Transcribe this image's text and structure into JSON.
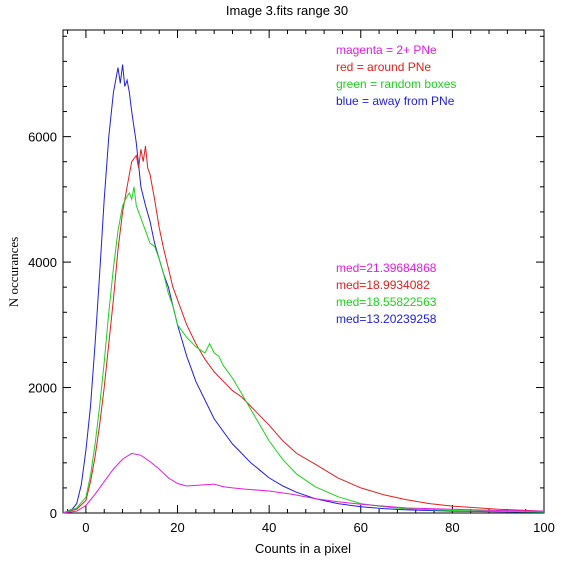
{
  "chart_data": {
    "type": "line",
    "title": "Image 3.fits   range 30",
    "xlabel": "Counts in a pixel",
    "ylabel": "N occurances",
    "xlim": [
      -5,
      100
    ],
    "ylim": [
      0,
      7700
    ],
    "xticks": [
      0,
      20,
      40,
      60,
      80,
      100
    ],
    "yticks": [
      0,
      2000,
      4000,
      6000
    ],
    "grid": false,
    "legend": [
      {
        "text": "magenta = 2+ PNe",
        "color": "#e020e0"
      },
      {
        "text": "red = around PNe",
        "color": "#e02020"
      },
      {
        "text": "green = random boxes",
        "color": "#20d020"
      },
      {
        "text": "blue = away from PNe",
        "color": "#2020e0"
      }
    ],
    "medians": [
      {
        "text": "med=21.39684868",
        "color": "#e020e0"
      },
      {
        "text": "med=18.9934082",
        "color": "#e02020"
      },
      {
        "text": "med=18.55822563",
        "color": "#20d020"
      },
      {
        "text": "med=13.20239258",
        "color": "#2020e0"
      }
    ],
    "series": [
      {
        "color": "#2020e0",
        "x": [
          -5,
          -3,
          -2,
          -1,
          0,
          1,
          2,
          3,
          4,
          5,
          6,
          7,
          7.5,
          8,
          8.5,
          9,
          9.5,
          10,
          11,
          12,
          13,
          14,
          15,
          16,
          17,
          18,
          19,
          20,
          21,
          22,
          23,
          24,
          26,
          28,
          30,
          32,
          34,
          36,
          38,
          40,
          43,
          46,
          50,
          55,
          60,
          65,
          70,
          80,
          90,
          100
        ],
        "y": [
          0,
          60,
          150,
          450,
          1000,
          1700,
          2700,
          3800,
          5000,
          6000,
          6700,
          7100,
          6850,
          7150,
          6800,
          6900,
          6700,
          6400,
          5900,
          5200,
          4900,
          4650,
          4300,
          4050,
          3800,
          3600,
          3300,
          3000,
          2750,
          2500,
          2300,
          2100,
          1800,
          1500,
          1300,
          1100,
          950,
          800,
          680,
          560,
          430,
          330,
          230,
          150,
          100,
          70,
          50,
          30,
          20,
          10
        ]
      },
      {
        "color": "#e02020",
        "x": [
          -5,
          -2,
          0,
          1,
          2,
          3,
          4,
          5,
          6,
          7,
          8,
          9,
          10,
          11,
          11.5,
          12,
          12.5,
          13,
          13.5,
          14,
          15,
          16,
          17,
          18,
          19,
          20,
          21,
          22,
          24,
          26,
          28,
          30,
          32,
          34,
          36,
          38,
          40,
          43,
          46,
          50,
          55,
          60,
          65,
          70,
          75,
          80,
          90,
          100
        ],
        "y": [
          0,
          60,
          200,
          500,
          900,
          1400,
          2000,
          2700,
          3400,
          4200,
          4800,
          5200,
          5600,
          5700,
          5500,
          5800,
          5600,
          5850,
          5500,
          5400,
          5000,
          4550,
          4200,
          3900,
          3600,
          3400,
          3200,
          3000,
          2700,
          2450,
          2250,
          2100,
          1950,
          1850,
          1700,
          1550,
          1400,
          1150,
          950,
          780,
          560,
          400,
          290,
          210,
          150,
          110,
          60,
          30
        ]
      },
      {
        "color": "#20d020",
        "x": [
          -5,
          -2,
          0,
          1,
          2,
          3,
          4,
          5,
          6,
          7,
          8,
          9,
          9.5,
          10,
          10.5,
          11,
          12,
          13,
          14,
          15,
          16,
          17,
          18,
          19,
          20,
          22,
          24,
          26,
          27,
          28,
          29,
          30,
          32,
          34,
          36,
          38,
          40,
          43,
          46,
          50,
          55,
          60,
          65,
          70,
          80,
          90,
          100
        ],
        "y": [
          0,
          80,
          250,
          600,
          1100,
          1700,
          2400,
          3200,
          3900,
          4500,
          4900,
          5050,
          5100,
          5000,
          5200,
          4900,
          4700,
          4500,
          4300,
          4250,
          4050,
          3800,
          3500,
          3300,
          3000,
          2800,
          2650,
          2550,
          2700,
          2550,
          2500,
          2350,
          2150,
          1900,
          1650,
          1400,
          1150,
          850,
          620,
          420,
          260,
          150,
          100,
          65,
          40,
          25,
          15
        ]
      },
      {
        "color": "#e020e0",
        "x": [
          -5,
          -2,
          0,
          2,
          4,
          6,
          8,
          10,
          12,
          14,
          16,
          18,
          20,
          22,
          24,
          26,
          28,
          30,
          32,
          35,
          40,
          45,
          50,
          55,
          60,
          70,
          80,
          90,
          100
        ],
        "y": [
          0,
          30,
          120,
          300,
          500,
          700,
          860,
          950,
          920,
          820,
          700,
          560,
          470,
          430,
          440,
          450,
          460,
          420,
          400,
          380,
          350,
          300,
          230,
          180,
          140,
          80,
          60,
          40,
          30
        ]
      }
    ]
  }
}
